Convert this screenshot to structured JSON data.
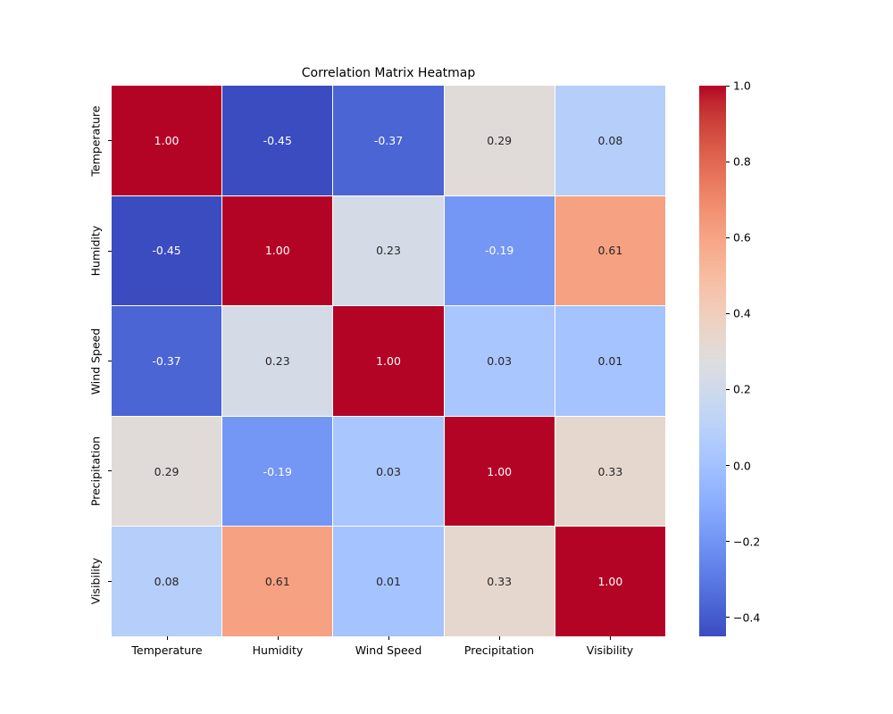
{
  "title": "Correlation Matrix Heatmap",
  "chart_data": {
    "type": "heatmap",
    "title": "Correlation Matrix Heatmap",
    "categories": [
      "Temperature",
      "Humidity",
      "Wind Speed",
      "Precipitation",
      "Visibility"
    ],
    "matrix": [
      [
        1.0,
        -0.45,
        -0.37,
        0.29,
        0.08
      ],
      [
        -0.45,
        1.0,
        0.23,
        -0.19,
        0.61
      ],
      [
        -0.37,
        0.23,
        1.0,
        0.03,
        0.01
      ],
      [
        0.29,
        -0.19,
        0.03,
        1.0,
        0.33
      ],
      [
        0.08,
        0.61,
        0.01,
        0.33,
        1.0
      ]
    ],
    "value_decimals": 2,
    "colormap": "coolwarm",
    "vmin": -0.45,
    "vmax": 1.0,
    "colorbar_tick_labels": [
      "1.0",
      "0.8",
      "0.6",
      "0.4",
      "0.2",
      "0.0",
      "−0.2",
      "−0.4"
    ],
    "colorbar_tick_values": [
      1.0,
      0.8,
      0.6,
      0.4,
      0.2,
      0.0,
      -0.2,
      -0.4
    ],
    "colors": {
      "cmap_low": "#3b4cc0",
      "cmap_mid": "#dddddd",
      "cmap_high": "#b40426",
      "annot_dark": "#262626",
      "annot_light": "#ffffff",
      "background": "#ffffff"
    },
    "legend_position": "right",
    "grid": false
  }
}
